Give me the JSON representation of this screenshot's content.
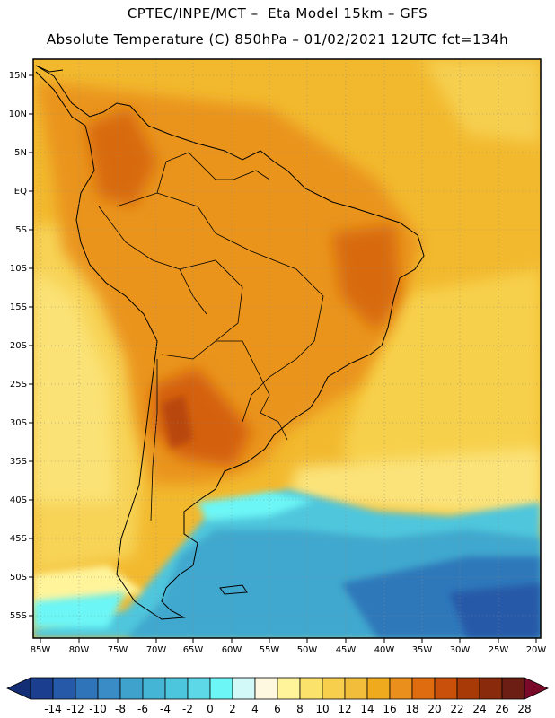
{
  "header": {
    "line1": "CPTEC/INPE/MCT –  Eta Model 15km – GFS",
    "line2": "Absolute Temperature (C) 850hPa – 01/02/2021 12UTC fct=134h"
  },
  "map": {
    "lat_labels": [
      "15N",
      "10N",
      "5N",
      "EQ",
      "5S",
      "10S",
      "15S",
      "20S",
      "25S",
      "30S",
      "35S",
      "40S",
      "45S",
      "50S",
      "55S"
    ],
    "lon_labels": [
      "85W",
      "80W",
      "75W",
      "70W",
      "65W",
      "60W",
      "55W",
      "50W",
      "45W",
      "40W",
      "35W",
      "30W",
      "25W",
      "20W"
    ]
  },
  "colorbar": {
    "labels": [
      "-14",
      "-12",
      "-10",
      "-8",
      "-6",
      "-4",
      "-2",
      "0",
      "2",
      "4",
      "6",
      "8",
      "10",
      "12",
      "14",
      "16",
      "18",
      "20",
      "22",
      "24",
      "26",
      "28"
    ],
    "colors": [
      "#1c3e8e",
      "#265aa8",
      "#2f74b9",
      "#3a8cc6",
      "#3fa2cd",
      "#44b5d4",
      "#4cc6dc",
      "#5cd8e6",
      "#6cf6f6",
      "#d2f8f8",
      "#fff8e0",
      "#fff49a",
      "#fbe26a",
      "#f7cf4c",
      "#f3bd3c",
      "#f0aa1e",
      "#ea8e1c",
      "#e06c10",
      "#c8500a",
      "#a83a08",
      "#8a2a0c",
      "#6c1e14"
    ],
    "under_color": "#142e76",
    "over_color": "#7a0a2a"
  }
}
